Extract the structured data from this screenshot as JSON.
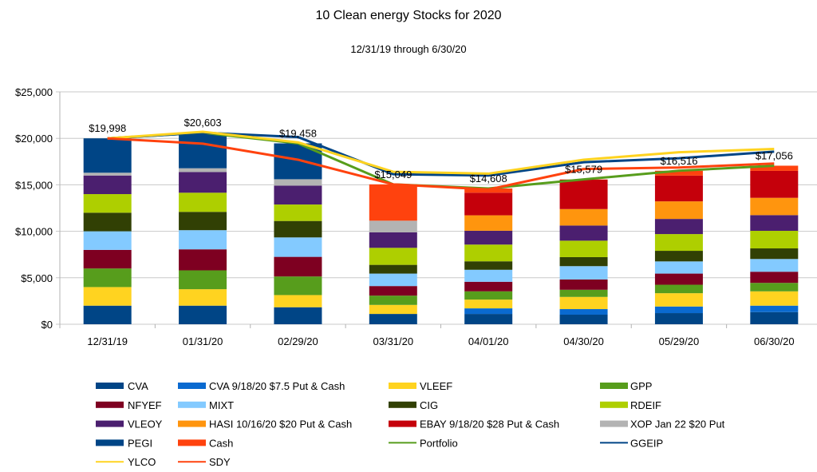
{
  "chart_data": {
    "type": "bar",
    "title": "10 Clean energy Stocks for 2020",
    "subtitle": "12/31/19 through 6/30/20",
    "xlabel": "",
    "ylabel": "",
    "ylim": [
      0,
      25000
    ],
    "yticks": [
      0,
      5000,
      10000,
      15000,
      20000,
      25000
    ],
    "ytick_labels": [
      "$0",
      "$5,000",
      "$10,000",
      "$15,000",
      "$20,000",
      "$25,000"
    ],
    "grid": true,
    "legend_position": "bottom",
    "stacked": true,
    "categories": [
      "12/31/19",
      "01/31/20",
      "02/29/20",
      "03/31/20",
      "04/01/20",
      "04/30/20",
      "05/29/20",
      "06/30/20"
    ],
    "totals_labels": [
      "$19,998",
      "$20,603",
      "$19,458",
      "$15,049",
      "$14,608",
      "$15,579",
      "$16,516",
      "$17,056"
    ],
    "bar_series": [
      {
        "name": "CVA",
        "color": "#004586",
        "values": [
          2000,
          2000,
          1830,
          1110,
          1110,
          1030,
          1200,
          1310
        ]
      },
      {
        "name": "CVA 9/18/20 $7.5 Put & Cash",
        "color": "#0a6ad0",
        "values": [
          0,
          0,
          0,
          0,
          600,
          600,
          710,
          690
        ]
      },
      {
        "name": "VLEEF",
        "color": "#ffd320",
        "values": [
          2000,
          1770,
          1310,
          970,
          940,
          1310,
          1430,
          1540
        ]
      },
      {
        "name": "GPP",
        "color": "#579d1c",
        "values": [
          2000,
          2030,
          2000,
          1000,
          890,
          770,
          910,
          910
        ]
      },
      {
        "name": "NFYEF",
        "color": "#7e0021",
        "values": [
          2000,
          2260,
          2110,
          1030,
          1030,
          1110,
          1200,
          1200
        ]
      },
      {
        "name": "MIXT",
        "color": "#83caff",
        "values": [
          2000,
          2060,
          2090,
          1340,
          1290,
          1430,
          1310,
          1370
        ]
      },
      {
        "name": "CIG",
        "color": "#314004",
        "values": [
          2000,
          1970,
          1770,
          940,
          910,
          970,
          1140,
          1140
        ]
      },
      {
        "name": "RDEIF",
        "color": "#aecf00",
        "values": [
          2000,
          2060,
          1770,
          1830,
          1800,
          1770,
          1800,
          1890
        ]
      },
      {
        "name": "VLEOY",
        "color": "#4b1f6f",
        "values": [
          2000,
          2230,
          2030,
          1660,
          1490,
          1630,
          1630,
          1690
        ]
      },
      {
        "name": "HASI 10/16/20 $20 Put & Cash",
        "color": "#ff950e",
        "values": [
          0,
          0,
          0,
          0,
          1660,
          1770,
          1890,
          1860
        ]
      },
      {
        "name": "EBAY 9/18/20 $28 Put & Cash",
        "color": "#c5000b",
        "values": [
          0,
          0,
          0,
          0,
          2430,
          3170,
          2770,
          2900
        ]
      },
      {
        "name": "XOP Jan 22 $20 Put",
        "color": "#b3b3b3",
        "values": [
          300,
          400,
          690,
          1260,
          0,
          0,
          0,
          0
        ]
      },
      {
        "name": "PEGI",
        "color": "#004586",
        "values": [
          3698,
          3823,
          3858,
          0,
          0,
          0,
          0,
          0
        ]
      },
      {
        "name": "Cash",
        "color": "#ff420e",
        "values": [
          0,
          0,
          0,
          3909,
          458,
          19,
          526,
          556
        ]
      }
    ],
    "line_series": [
      {
        "name": "Portfolio",
        "color": "#579d1c",
        "values": [
          19998,
          20603,
          19458,
          15049,
          14608,
          15579,
          16516,
          17056
        ]
      },
      {
        "name": "GGEIP",
        "color": "#004586",
        "values": [
          19998,
          20603,
          20140,
          16140,
          16000,
          17430,
          17860,
          18570
        ]
      },
      {
        "name": "YLCO",
        "color": "#ffd320",
        "values": [
          19998,
          20700,
          19570,
          16400,
          16200,
          17700,
          18500,
          18860
        ]
      },
      {
        "name": "SDY",
        "color": "#ff420e",
        "values": [
          19998,
          19430,
          17700,
          15050,
          14500,
          16700,
          16860,
          17290
        ]
      }
    ],
    "legend": [
      "CVA",
      "CVA 9/18/20 $7.5 Put & Cash",
      "VLEEF",
      "GPP",
      "NFYEF",
      "MIXT",
      "CIG",
      "RDEIF",
      "VLEOY",
      "HASI 10/16/20 $20 Put & Cash",
      "EBAY 9/18/20 $28 Put & Cash",
      "XOP Jan 22 $20 Put",
      "PEGI",
      "Cash",
      "Portfolio",
      "GGEIP",
      "YLCO",
      "SDY"
    ]
  }
}
